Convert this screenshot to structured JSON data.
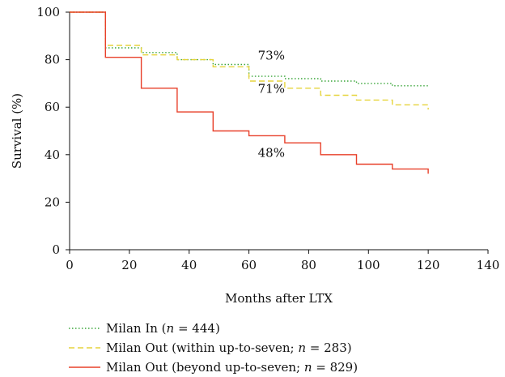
{
  "chart_data": {
    "type": "line",
    "step": true,
    "xlabel": "Months after LTX",
    "ylabel": "Survival (%)",
    "xlim": [
      0,
      140
    ],
    "ylim": [
      0,
      100
    ],
    "xticks": [
      0,
      20,
      40,
      60,
      80,
      100,
      120,
      140
    ],
    "yticks": [
      0,
      20,
      40,
      60,
      80,
      100
    ],
    "grid": false,
    "legend_position": "bottom",
    "series": [
      {
        "name": "Milan In (n = 444)",
        "name_parts": [
          "Milan In (",
          "n",
          " = 444)"
        ],
        "style": "dotted",
        "color": "#3aa63a",
        "x": [
          0,
          12,
          12,
          24,
          24,
          36,
          36,
          48,
          48,
          60,
          60,
          72,
          72,
          84,
          84,
          96,
          96,
          108,
          108,
          120
        ],
        "y": [
          100,
          100,
          85,
          85,
          83,
          83,
          80,
          80,
          78,
          78,
          73,
          73,
          72,
          72,
          71,
          71,
          70,
          70,
          69,
          69
        ]
      },
      {
        "name": "Milan Out (within up-to-seven; n = 283)",
        "name_parts": [
          "Milan Out (within up-to-seven; ",
          "n",
          " = 283)"
        ],
        "style": "dashed",
        "color": "#e6d43c",
        "x": [
          0,
          12,
          12,
          24,
          24,
          36,
          36,
          48,
          48,
          60,
          60,
          72,
          72,
          84,
          84,
          96,
          96,
          108,
          108,
          120,
          120
        ],
        "y": [
          100,
          100,
          86,
          86,
          82,
          82,
          80,
          80,
          77,
          77,
          71,
          71,
          68,
          68,
          65,
          65,
          63,
          63,
          61,
          61,
          59
        ]
      },
      {
        "name": "Milan Out (beyond up-to-seven; n = 829)",
        "name_parts": [
          "Milan Out (beyond up-to-seven; ",
          "n",
          " = 829)"
        ],
        "style": "solid",
        "color": "#e8402a",
        "x": [
          0,
          12,
          12,
          24,
          24,
          36,
          36,
          48,
          48,
          60,
          60,
          72,
          72,
          84,
          84,
          96,
          96,
          108,
          108,
          120,
          120
        ],
        "y": [
          100,
          100,
          81,
          81,
          68,
          68,
          58,
          58,
          50,
          50,
          48,
          48,
          45,
          45,
          40,
          40,
          36,
          36,
          34,
          34,
          32
        ]
      }
    ],
    "annotations": [
      {
        "text": "73%",
        "x": 63,
        "y": 80
      },
      {
        "text": "71%",
        "x": 63,
        "y": 66
      },
      {
        "text": "48%",
        "x": 63,
        "y": 39
      }
    ]
  }
}
